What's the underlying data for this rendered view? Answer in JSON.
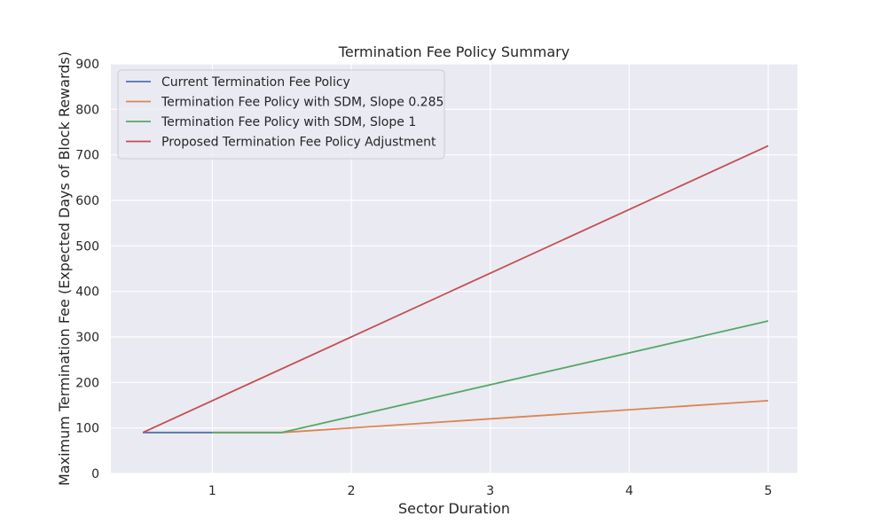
{
  "chart_data": {
    "type": "line",
    "title": "Termination Fee Policy Summary",
    "xlabel": "Sector Duration",
    "ylabel": "Maximum Termination Fee (Expected Days of Block Rewards)",
    "xlim": [
      0.27,
      5.21
    ],
    "ylim": [
      0,
      900
    ],
    "xticks": [
      1,
      2,
      3,
      4,
      5
    ],
    "yticks": [
      0,
      100,
      200,
      300,
      400,
      500,
      600,
      700,
      800,
      900
    ],
    "grid": true,
    "legend_position": "top-left",
    "series": [
      {
        "name": "Current Termination Fee Policy",
        "color": "#4c72b0",
        "points": [
          [
            0.5,
            90
          ],
          [
            1.0,
            90
          ]
        ]
      },
      {
        "name": "Termination Fee Policy with SDM, Slope 0.285",
        "color": "#dd8452",
        "points": [
          [
            1.0,
            90
          ],
          [
            1.5,
            90
          ],
          [
            5.0,
            160
          ]
        ]
      },
      {
        "name": "Termination Fee Policy with SDM, Slope 1",
        "color": "#55a868",
        "points": [
          [
            1.0,
            90
          ],
          [
            1.5,
            90
          ],
          [
            5.0,
            335
          ]
        ]
      },
      {
        "name": "Proposed Termination Fee Policy Adjustment",
        "color": "#c44e52",
        "points": [
          [
            0.5,
            90
          ],
          [
            5.0,
            720
          ]
        ]
      }
    ]
  }
}
